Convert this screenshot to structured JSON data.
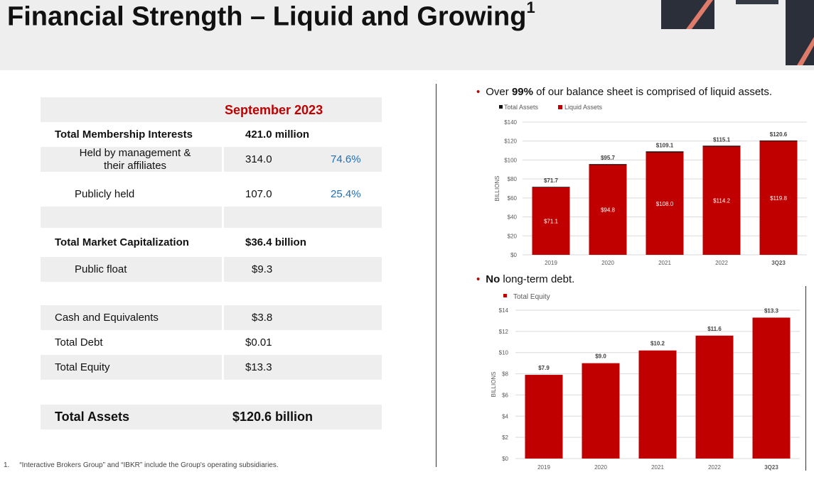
{
  "title": "Financial Strength – Liquid and Growing",
  "title_sup": "1",
  "table": {
    "header": "September 2023",
    "rows": [
      {
        "label": "Total Membership Interests",
        "value": "421.0 million",
        "pct": ""
      },
      {
        "label": "Held by management & their affiliates",
        "value": "314.0",
        "pct": "74.6%"
      },
      {
        "label": "Publicly held",
        "value": "107.0",
        "pct": "25.4%"
      },
      {
        "label": "Total Market Capitalization",
        "value": "$36.4 billion",
        "pct": ""
      },
      {
        "label": "Public float",
        "value": "$9.3",
        "pct": ""
      },
      {
        "label": "Cash and Equivalents",
        "value": "$3.8",
        "pct": ""
      },
      {
        "label": "Total Debt",
        "value": "$0.01",
        "pct": ""
      },
      {
        "label": "Total Equity",
        "value": "$13.3",
        "pct": ""
      },
      {
        "label": "Total Assets",
        "value": "$120.6 billion",
        "pct": ""
      }
    ]
  },
  "bullets": {
    "b1_pre": "Over ",
    "b1_bold": "99%",
    "b1_post": " of our balance sheet is comprised of liquid assets.",
    "b2_bold": "No",
    "b2_post": " long-term debt."
  },
  "footnote": {
    "num": "1.",
    "text": "“Interactive Brokers Group” and “IBKR” include the Group's operating subsidiaries."
  },
  "colors": {
    "accent": "#c00000",
    "pct_blue": "#1f6fb5",
    "header_bg": "#eeeeee"
  },
  "chart_data": [
    {
      "type": "bar",
      "title": "",
      "ylabel": "BILLIONS",
      "xlabel": "",
      "ylim": [
        0,
        140
      ],
      "yticks": [
        0,
        20,
        40,
        60,
        80,
        100,
        120,
        140
      ],
      "tick_prefix": "$",
      "legend": [
        "Total Assets",
        "Liquid Assets"
      ],
      "legend_position": "top",
      "categories": [
        "2019",
        "2020",
        "2021",
        "2022",
        "3Q23"
      ],
      "series": [
        {
          "name": "Total Assets",
          "values": [
            71.7,
            95.7,
            109.1,
            115.1,
            120.6
          ],
          "labels": [
            "$71.7",
            "$95.7",
            "$109.1",
            "$115.1",
            "$120.6"
          ],
          "color": "#111111"
        },
        {
          "name": "Liquid Assets",
          "values": [
            71.1,
            94.8,
            108.0,
            114.2,
            119.8
          ],
          "labels": [
            "$71.1",
            "$94.8",
            "$108.0",
            "$114.2",
            "$119.8"
          ],
          "color": "#c00000"
        }
      ]
    },
    {
      "type": "bar",
      "title": "",
      "ylabel": "BILLIONS",
      "xlabel": "",
      "ylim": [
        0,
        14
      ],
      "yticks": [
        0,
        2,
        4,
        6,
        8,
        10,
        12,
        14
      ],
      "tick_prefix": "$",
      "legend": [
        "Total Equity"
      ],
      "legend_position": "top-left",
      "categories": [
        "2019",
        "2020",
        "2021",
        "2022",
        "3Q23"
      ],
      "series": [
        {
          "name": "Total Equity",
          "values": [
            7.9,
            9.0,
            10.2,
            11.6,
            13.3
          ],
          "labels": [
            "$7.9",
            "$9.0",
            "$10.2",
            "$11.6",
            "$13.3"
          ],
          "color": "#c00000"
        }
      ]
    }
  ]
}
